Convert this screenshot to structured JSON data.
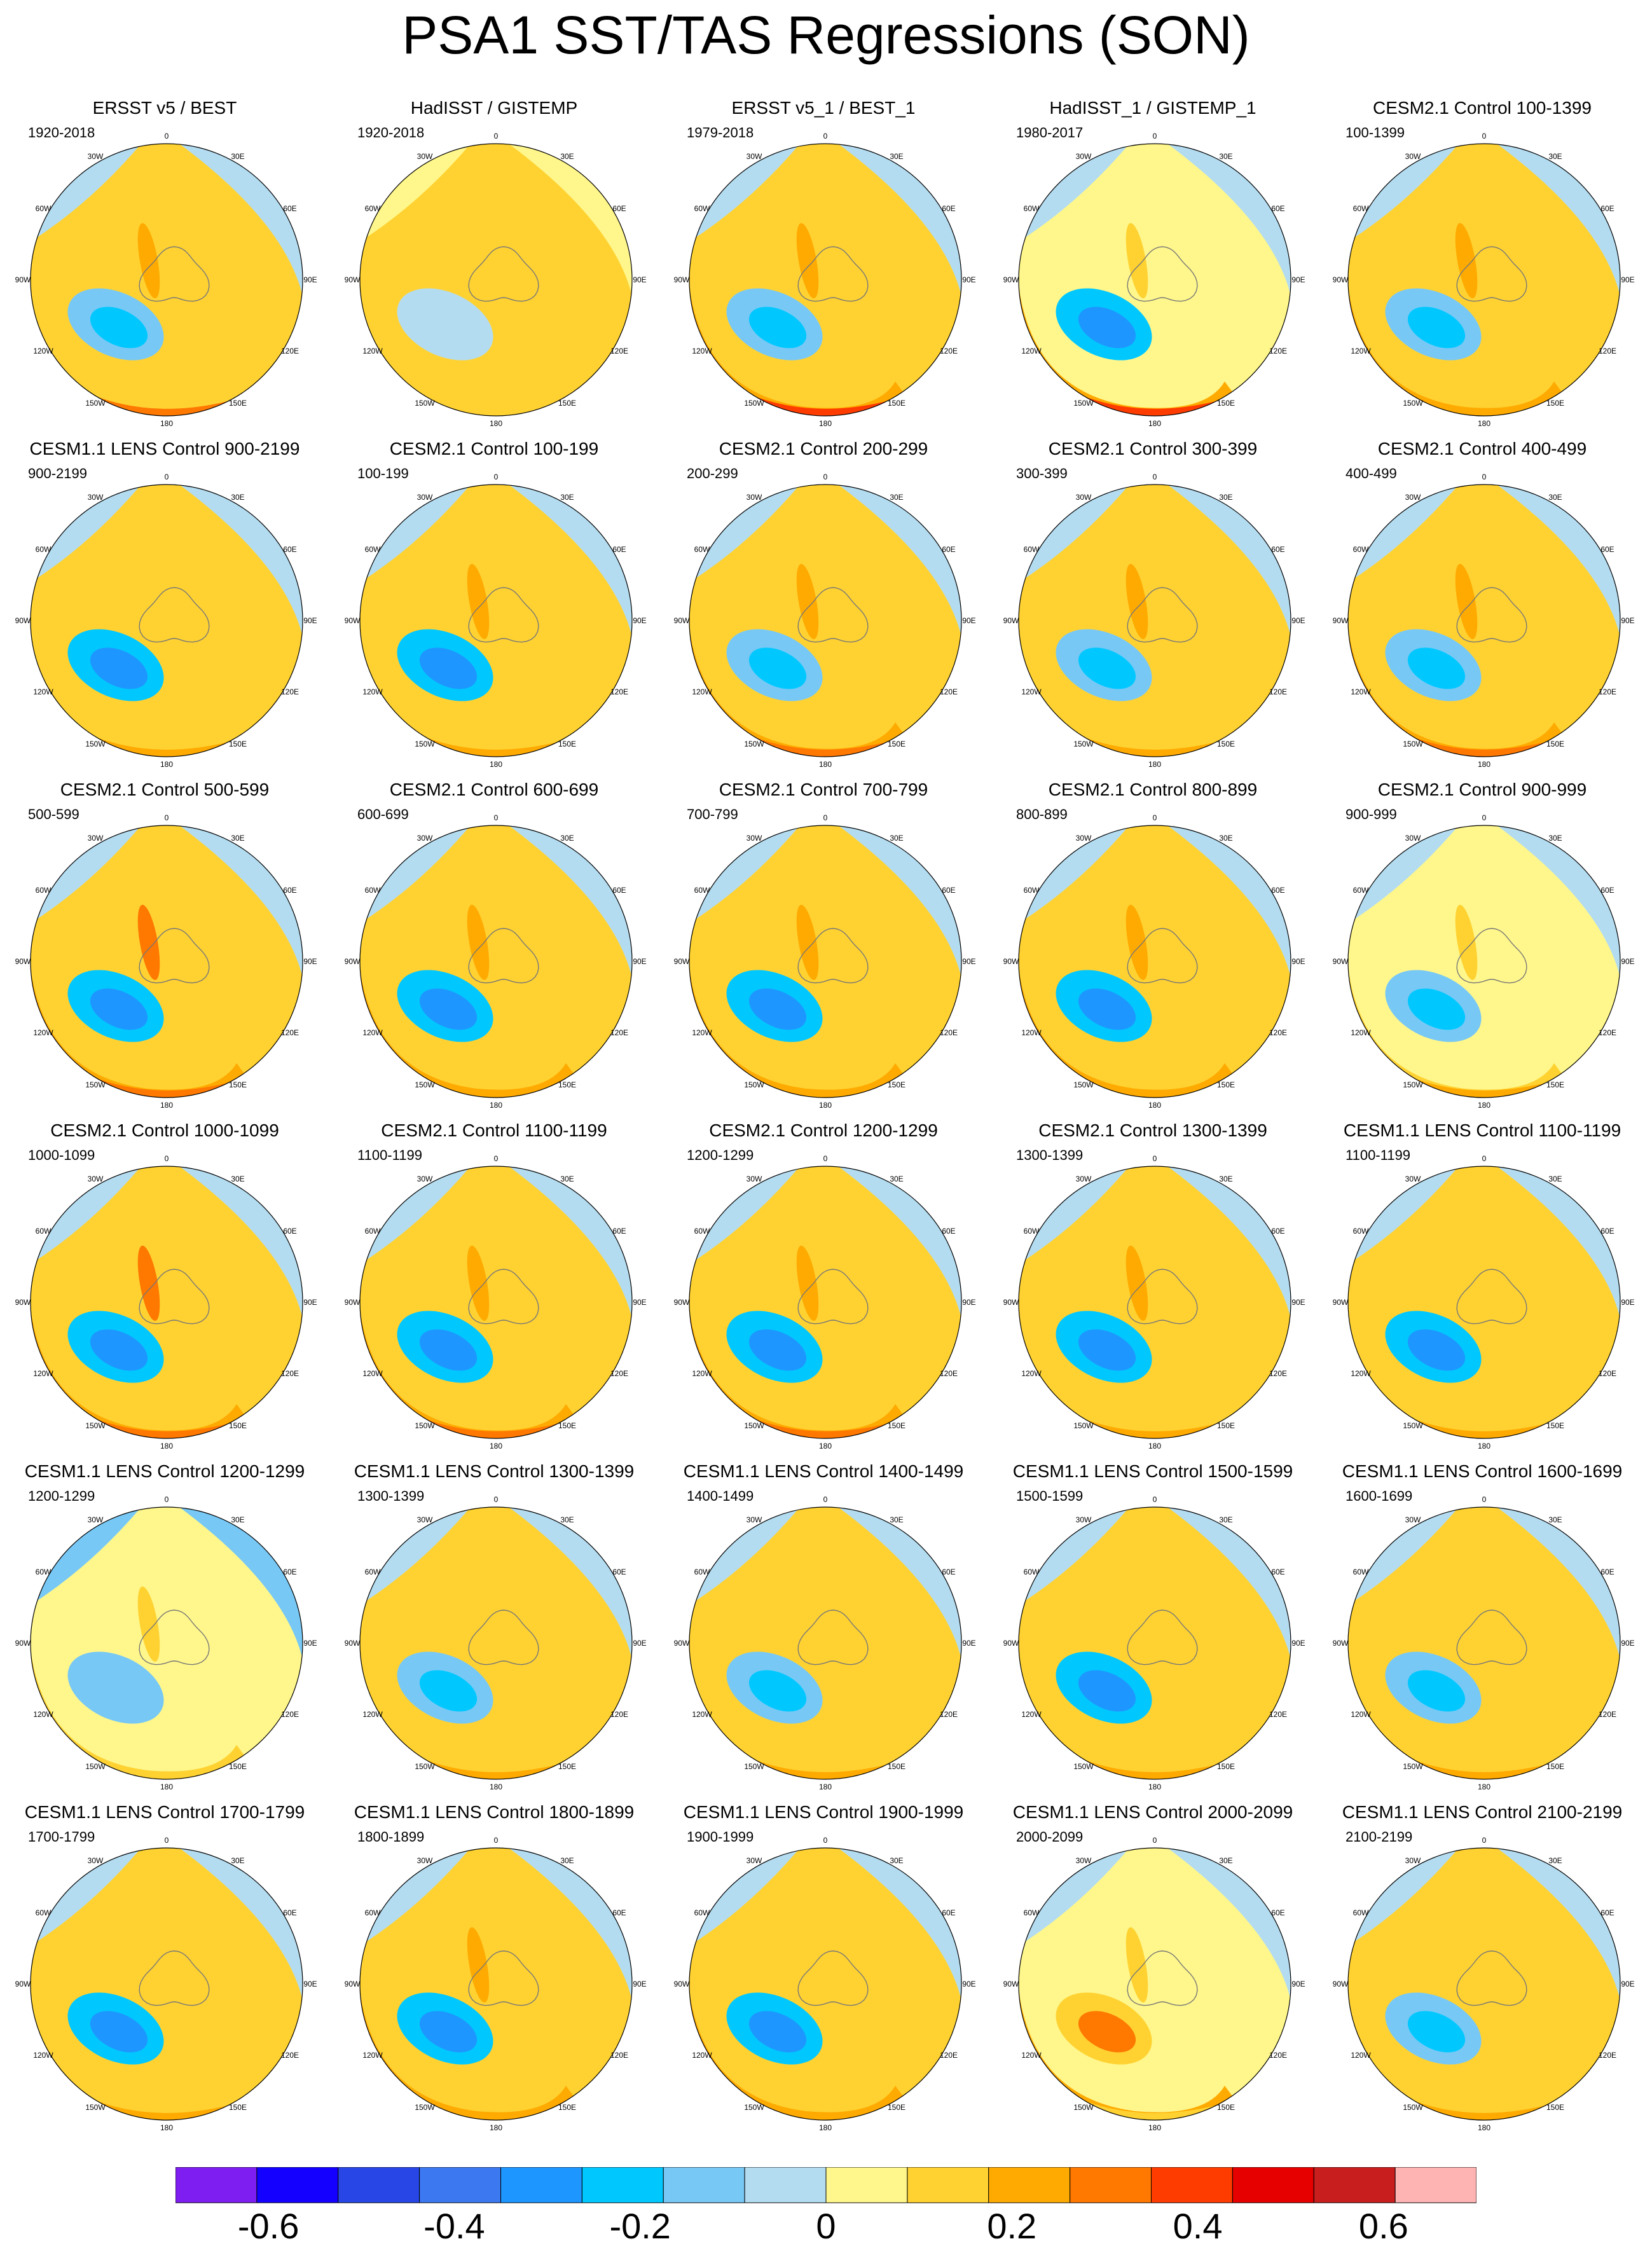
{
  "title": "PSA1 SST/TAS Regressions (SON)",
  "lon_labels": [
    "0",
    "30E",
    "60E",
    "90E",
    "120E",
    "150E",
    "180",
    "150W",
    "120W",
    "90W",
    "60W",
    "30W"
  ],
  "chart_data": {
    "type": "heatmap",
    "projection": "south-polar-stereographic",
    "title": "PSA1 SST/TAS Regressions (SON)",
    "colorbar": {
      "boundaries": [
        -0.7,
        -0.6,
        -0.5,
        -0.4,
        -0.3,
        -0.2,
        -0.1,
        0,
        0.1,
        0.2,
        0.3,
        0.4,
        0.5,
        0.6,
        0.7
      ],
      "colors": [
        "#7e1ef0",
        "#1400ff",
        "#2846e6",
        "#3c78f0",
        "#1e96ff",
        "#00c8ff",
        "#78c8f5",
        "#b4dcf0",
        "#fff78c",
        "#ffd232",
        "#ffaa00",
        "#ff7800",
        "#ff3c00",
        "#e60000",
        "#c81e1e",
        "#ffb4b4"
      ],
      "tick_labels": [
        "-0.6",
        "-0.4",
        "-0.2",
        "0",
        "0.2",
        "0.4",
        "0.6"
      ],
      "tick_values": [
        -0.6,
        -0.4,
        -0.2,
        0,
        0.2,
        0.4,
        0.6
      ]
    },
    "panels": [
      {
        "title": "ERSST v5 / BEST",
        "period": "1920-2018",
        "pattern": [
          0.1,
          -0.05,
          0.15,
          0.3,
          -0.3,
          0.2
        ]
      },
      {
        "title": "HadISST / GISTEMP",
        "period": "1920-2018",
        "pattern": [
          0.1,
          0.05,
          0.1,
          0.15,
          -0.1,
          0.1
        ]
      },
      {
        "title": "ERSST v5_1 / BEST_1",
        "period": "1979-2018",
        "pattern": [
          0.1,
          -0.05,
          0.2,
          0.45,
          -0.3,
          0.2
        ]
      },
      {
        "title": "HadISST_1 / GISTEMP_1",
        "period": "1980-2017",
        "pattern": [
          0.05,
          -0.1,
          0.2,
          0.45,
          -0.35,
          0.1
        ]
      },
      {
        "title": "CESM2.1 Control 100-1399",
        "period": "100-1399",
        "pattern": [
          0.1,
          -0.05,
          0.2,
          0.25,
          -0.3,
          0.2
        ]
      },
      {
        "title": "CESM1.1 LENS Control 900-2199",
        "period": "900-2199",
        "pattern": [
          0.1,
          -0.05,
          0.15,
          0.2,
          -0.35,
          0.15
        ]
      },
      {
        "title": "CESM2.1 Control 100-199",
        "period": "100-199",
        "pattern": [
          0.1,
          -0.05,
          0.15,
          0.25,
          -0.4,
          0.2
        ]
      },
      {
        "title": "CESM2.1 Control 200-299",
        "period": "200-299",
        "pattern": [
          0.15,
          -0.05,
          0.2,
          0.3,
          -0.3,
          0.25
        ]
      },
      {
        "title": "CESM2.1 Control 300-399",
        "period": "300-399",
        "pattern": [
          0.1,
          -0.05,
          0.15,
          0.25,
          -0.3,
          0.2
        ]
      },
      {
        "title": "CESM2.1 Control 400-499",
        "period": "400-499",
        "pattern": [
          0.15,
          -0.05,
          0.2,
          0.3,
          -0.3,
          0.2
        ]
      },
      {
        "title": "CESM2.1 Control 500-599",
        "period": "500-599",
        "pattern": [
          0.15,
          -0.05,
          0.2,
          0.3,
          -0.35,
          0.3
        ]
      },
      {
        "title": "CESM2.1 Control 600-699",
        "period": "600-699",
        "pattern": [
          0.1,
          -0.05,
          0.2,
          0.25,
          -0.35,
          0.25
        ]
      },
      {
        "title": "CESM2.1 Control 700-799",
        "period": "700-799",
        "pattern": [
          0.1,
          -0.1,
          0.2,
          0.25,
          -0.35,
          0.25
        ]
      },
      {
        "title": "CESM2.1 Control 800-899",
        "period": "800-899",
        "pattern": [
          0.1,
          -0.05,
          0.2,
          0.25,
          -0.35,
          0.25
        ]
      },
      {
        "title": "CESM2.1 Control 900-999",
        "period": "900-999",
        "pattern": [
          0.05,
          -0.1,
          0.15,
          0.2,
          -0.3,
          0.15
        ]
      },
      {
        "title": "CESM2.1 Control 1000-1099",
        "period": "1000-1099",
        "pattern": [
          0.15,
          -0.05,
          0.2,
          0.3,
          -0.35,
          0.3
        ]
      },
      {
        "title": "CESM2.1 Control 1100-1199",
        "period": "1100-1199",
        "pattern": [
          0.15,
          -0.05,
          0.2,
          0.35,
          -0.35,
          0.25
        ]
      },
      {
        "title": "CESM2.1 Control 1200-1299",
        "period": "1200-1299",
        "pattern": [
          0.15,
          -0.05,
          0.2,
          0.3,
          -0.35,
          0.25
        ]
      },
      {
        "title": "CESM2.1 Control 1300-1399",
        "period": "1300-1399",
        "pattern": [
          0.1,
          -0.05,
          0.15,
          0.25,
          -0.35,
          0.2
        ]
      },
      {
        "title": "CESM1.1 LENS Control 1100-1199",
        "period": "1100-1199",
        "pattern": [
          0.1,
          -0.05,
          0.15,
          0.2,
          -0.35,
          0.15
        ]
      },
      {
        "title": "CESM1.1 LENS Control 1200-1299",
        "period": "1200-1299",
        "pattern": [
          0.05,
          -0.15,
          0.1,
          0.15,
          -0.2,
          0.1
        ]
      },
      {
        "title": "CESM1.1 LENS Control 1300-1399",
        "period": "1300-1399",
        "pattern": [
          0.1,
          -0.05,
          0.15,
          0.2,
          -0.3,
          0.15
        ]
      },
      {
        "title": "CESM1.1 LENS Control 1400-1499",
        "period": "1400-1499",
        "pattern": [
          0.1,
          -0.05,
          0.15,
          0.2,
          -0.3,
          0.15
        ]
      },
      {
        "title": "CESM1.1 LENS Control 1500-1599",
        "period": "1500-1599",
        "pattern": [
          0.1,
          -0.05,
          0.15,
          0.2,
          -0.4,
          0.15
        ]
      },
      {
        "title": "CESM1.1 LENS Control 1600-1699",
        "period": "1600-1699",
        "pattern": [
          0.1,
          -0.05,
          0.15,
          0.2,
          -0.3,
          0.15
        ]
      },
      {
        "title": "CESM1.1 LENS Control 1700-1799",
        "period": "1700-1799",
        "pattern": [
          0.1,
          -0.05,
          0.15,
          0.2,
          -0.35,
          0.15
        ]
      },
      {
        "title": "CESM1.1 LENS Control 1800-1899",
        "period": "1800-1899",
        "pattern": [
          0.15,
          -0.05,
          0.2,
          0.2,
          -0.35,
          0.2
        ]
      },
      {
        "title": "CESM1.1 LENS Control 1900-1999",
        "period": "1900-1999",
        "pattern": [
          0.1,
          -0.05,
          0.2,
          0.2,
          -0.35,
          0.15
        ]
      },
      {
        "title": "CESM1.1 LENS Control 2000-2099",
        "period": "2000-2099",
        "pattern": [
          0.05,
          -0.1,
          0.25,
          0.15,
          0.3,
          0.1
        ]
      },
      {
        "title": "CESM1.1 LENS Control 2100-2199",
        "period": "2100-2199",
        "pattern": [
          0.1,
          -0.05,
          0.15,
          0.2,
          -0.3,
          0.15
        ]
      }
    ]
  }
}
